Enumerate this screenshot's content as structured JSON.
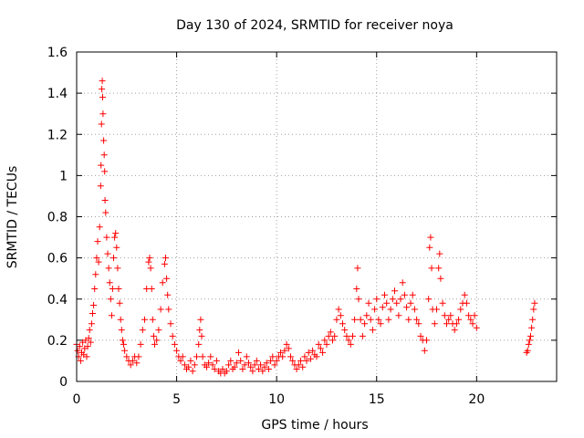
{
  "chart_data": {
    "type": "scatter",
    "title": "Day 130 of 2024, SRMTID for receiver noya",
    "xlabel": "GPS time / hours",
    "ylabel": "SRMTID / TECUs",
    "xlim": [
      0,
      24
    ],
    "ylim": [
      0,
      1.6
    ],
    "xticks": [
      0,
      5,
      10,
      15,
      20
    ],
    "xtick_labels": [
      "0",
      "5",
      "10",
      "15",
      "20"
    ],
    "yticks": [
      0,
      0.2,
      0.4,
      0.6,
      0.8,
      1,
      1.2,
      1.4,
      1.6
    ],
    "ytick_labels": [
      "0",
      "0.2",
      "0.4",
      "0.6",
      "0.8",
      "1",
      "1.2",
      "1.4",
      "1.6"
    ],
    "grid": true,
    "marker": "+",
    "color": "#ff0000",
    "series": [
      {
        "name": "SRMTID",
        "points": [
          [
            0.0,
            0.18
          ],
          [
            0.05,
            0.15
          ],
          [
            0.1,
            0.12
          ],
          [
            0.15,
            0.17
          ],
          [
            0.2,
            0.1
          ],
          [
            0.25,
            0.14
          ],
          [
            0.3,
            0.19
          ],
          [
            0.35,
            0.13
          ],
          [
            0.4,
            0.16
          ],
          [
            0.45,
            0.2
          ],
          [
            0.5,
            0.12
          ],
          [
            0.55,
            0.17
          ],
          [
            0.6,
            0.21
          ],
          [
            0.65,
            0.25
          ],
          [
            0.7,
            0.19
          ],
          [
            0.75,
            0.28
          ],
          [
            0.8,
            0.33
          ],
          [
            0.85,
            0.37
          ],
          [
            0.9,
            0.45
          ],
          [
            0.95,
            0.52
          ],
          [
            1.0,
            0.6
          ],
          [
            1.05,
            0.68
          ],
          [
            1.1,
            0.58
          ],
          [
            1.15,
            0.75
          ],
          [
            1.2,
            0.95
          ],
          [
            1.22,
            1.05
          ],
          [
            1.24,
            1.25
          ],
          [
            1.26,
            1.42
          ],
          [
            1.28,
            1.46
          ],
          [
            1.3,
            1.38
          ],
          [
            1.32,
            1.3
          ],
          [
            1.35,
            1.17
          ],
          [
            1.38,
            1.1
          ],
          [
            1.4,
            1.02
          ],
          [
            1.42,
            0.88
          ],
          [
            1.45,
            0.82
          ],
          [
            1.5,
            0.7
          ],
          [
            1.55,
            0.62
          ],
          [
            1.6,
            0.55
          ],
          [
            1.65,
            0.48
          ],
          [
            1.7,
            0.4
          ],
          [
            1.75,
            0.32
          ],
          [
            1.8,
            0.45
          ],
          [
            1.85,
            0.6
          ],
          [
            1.9,
            0.7
          ],
          [
            1.95,
            0.72
          ],
          [
            2.0,
            0.65
          ],
          [
            2.05,
            0.55
          ],
          [
            2.1,
            0.45
          ],
          [
            2.15,
            0.38
          ],
          [
            2.2,
            0.3
          ],
          [
            2.25,
            0.25
          ],
          [
            2.3,
            0.2
          ],
          [
            2.35,
            0.18
          ],
          [
            2.4,
            0.15
          ],
          [
            2.5,
            0.12
          ],
          [
            2.6,
            0.1
          ],
          [
            2.7,
            0.08
          ],
          [
            2.8,
            0.1
          ],
          [
            2.9,
            0.12
          ],
          [
            3.0,
            0.09
          ],
          [
            3.1,
            0.12
          ],
          [
            3.2,
            0.18
          ],
          [
            3.3,
            0.25
          ],
          [
            3.4,
            0.3
          ],
          [
            3.5,
            0.45
          ],
          [
            3.6,
            0.58
          ],
          [
            3.65,
            0.6
          ],
          [
            3.7,
            0.55
          ],
          [
            3.75,
            0.45
          ],
          [
            3.8,
            0.3
          ],
          [
            3.85,
            0.22
          ],
          [
            3.9,
            0.18
          ],
          [
            4.0,
            0.2
          ],
          [
            4.1,
            0.25
          ],
          [
            4.2,
            0.35
          ],
          [
            4.3,
            0.48
          ],
          [
            4.4,
            0.57
          ],
          [
            4.45,
            0.6
          ],
          [
            4.5,
            0.5
          ],
          [
            4.55,
            0.42
          ],
          [
            4.6,
            0.35
          ],
          [
            4.7,
            0.28
          ],
          [
            4.8,
            0.22
          ],
          [
            4.9,
            0.18
          ],
          [
            5.0,
            0.15
          ],
          [
            5.1,
            0.12
          ],
          [
            5.2,
            0.1
          ],
          [
            5.3,
            0.12
          ],
          [
            5.4,
            0.08
          ],
          [
            5.5,
            0.06
          ],
          [
            5.6,
            0.07
          ],
          [
            5.7,
            0.1
          ],
          [
            5.8,
            0.05
          ],
          [
            5.9,
            0.08
          ],
          [
            6.0,
            0.12
          ],
          [
            6.1,
            0.18
          ],
          [
            6.15,
            0.25
          ],
          [
            6.2,
            0.3
          ],
          [
            6.25,
            0.22
          ],
          [
            6.3,
            0.12
          ],
          [
            6.4,
            0.08
          ],
          [
            6.5,
            0.07
          ],
          [
            6.6,
            0.09
          ],
          [
            6.7,
            0.12
          ],
          [
            6.8,
            0.08
          ],
          [
            6.9,
            0.06
          ],
          [
            7.0,
            0.1
          ],
          [
            7.1,
            0.05
          ],
          [
            7.2,
            0.04
          ],
          [
            7.3,
            0.06
          ],
          [
            7.4,
            0.04
          ],
          [
            7.5,
            0.05
          ],
          [
            7.6,
            0.08
          ],
          [
            7.7,
            0.1
          ],
          [
            7.8,
            0.06
          ],
          [
            7.9,
            0.07
          ],
          [
            8.0,
            0.09
          ],
          [
            8.1,
            0.14
          ],
          [
            8.2,
            0.1
          ],
          [
            8.3,
            0.06
          ],
          [
            8.4,
            0.08
          ],
          [
            8.5,
            0.12
          ],
          [
            8.6,
            0.09
          ],
          [
            8.7,
            0.07
          ],
          [
            8.8,
            0.05
          ],
          [
            8.9,
            0.08
          ],
          [
            9.0,
            0.1
          ],
          [
            9.1,
            0.06
          ],
          [
            9.2,
            0.08
          ],
          [
            9.3,
            0.05
          ],
          [
            9.4,
            0.07
          ],
          [
            9.5,
            0.09
          ],
          [
            9.6,
            0.06
          ],
          [
            9.7,
            0.1
          ],
          [
            9.8,
            0.12
          ],
          [
            9.9,
            0.08
          ],
          [
            10.0,
            0.1
          ],
          [
            10.1,
            0.12
          ],
          [
            10.2,
            0.14
          ],
          [
            10.3,
            0.12
          ],
          [
            10.4,
            0.15
          ],
          [
            10.5,
            0.18
          ],
          [
            10.6,
            0.16
          ],
          [
            10.7,
            0.12
          ],
          [
            10.8,
            0.1
          ],
          [
            10.9,
            0.08
          ],
          [
            11.0,
            0.06
          ],
          [
            11.1,
            0.08
          ],
          [
            11.2,
            0.1
          ],
          [
            11.3,
            0.07
          ],
          [
            11.4,
            0.12
          ],
          [
            11.5,
            0.1
          ],
          [
            11.6,
            0.14
          ],
          [
            11.7,
            0.11
          ],
          [
            11.8,
            0.15
          ],
          [
            11.9,
            0.13
          ],
          [
            12.0,
            0.12
          ],
          [
            12.1,
            0.18
          ],
          [
            12.2,
            0.16
          ],
          [
            12.3,
            0.14
          ],
          [
            12.4,
            0.2
          ],
          [
            12.5,
            0.18
          ],
          [
            12.6,
            0.22
          ],
          [
            12.7,
            0.24
          ],
          [
            12.8,
            0.2
          ],
          [
            12.9,
            0.22
          ],
          [
            13.0,
            0.3
          ],
          [
            13.1,
            0.35
          ],
          [
            13.2,
            0.32
          ],
          [
            13.3,
            0.28
          ],
          [
            13.4,
            0.25
          ],
          [
            13.5,
            0.22
          ],
          [
            13.6,
            0.2
          ],
          [
            13.7,
            0.18
          ],
          [
            13.8,
            0.22
          ],
          [
            13.9,
            0.3
          ],
          [
            14.0,
            0.45
          ],
          [
            14.05,
            0.55
          ],
          [
            14.1,
            0.4
          ],
          [
            14.2,
            0.3
          ],
          [
            14.3,
            0.22
          ],
          [
            14.4,
            0.28
          ],
          [
            14.5,
            0.32
          ],
          [
            14.6,
            0.38
          ],
          [
            14.7,
            0.3
          ],
          [
            14.8,
            0.25
          ],
          [
            14.9,
            0.35
          ],
          [
            15.0,
            0.4
          ],
          [
            15.1,
            0.3
          ],
          [
            15.2,
            0.28
          ],
          [
            15.3,
            0.36
          ],
          [
            15.4,
            0.42
          ],
          [
            15.5,
            0.38
          ],
          [
            15.6,
            0.3
          ],
          [
            15.7,
            0.35
          ],
          [
            15.8,
            0.4
          ],
          [
            15.9,
            0.44
          ],
          [
            16.0,
            0.38
          ],
          [
            16.1,
            0.32
          ],
          [
            16.2,
            0.4
          ],
          [
            16.3,
            0.48
          ],
          [
            16.4,
            0.42
          ],
          [
            16.5,
            0.36
          ],
          [
            16.6,
            0.3
          ],
          [
            16.7,
            0.38
          ],
          [
            16.8,
            0.42
          ],
          [
            16.9,
            0.35
          ],
          [
            17.0,
            0.3
          ],
          [
            17.1,
            0.28
          ],
          [
            17.2,
            0.22
          ],
          [
            17.3,
            0.2
          ],
          [
            17.4,
            0.15
          ],
          [
            17.5,
            0.2
          ],
          [
            17.6,
            0.4
          ],
          [
            17.65,
            0.65
          ],
          [
            17.7,
            0.7
          ],
          [
            17.75,
            0.55
          ],
          [
            17.8,
            0.35
          ],
          [
            17.9,
            0.28
          ],
          [
            18.0,
            0.35
          ],
          [
            18.1,
            0.55
          ],
          [
            18.15,
            0.62
          ],
          [
            18.2,
            0.5
          ],
          [
            18.3,
            0.38
          ],
          [
            18.4,
            0.32
          ],
          [
            18.5,
            0.28
          ],
          [
            18.6,
            0.3
          ],
          [
            18.7,
            0.32
          ],
          [
            18.8,
            0.28
          ],
          [
            18.9,
            0.25
          ],
          [
            19.0,
            0.28
          ],
          [
            19.1,
            0.3
          ],
          [
            19.2,
            0.35
          ],
          [
            19.3,
            0.38
          ],
          [
            19.4,
            0.42
          ],
          [
            19.5,
            0.38
          ],
          [
            19.6,
            0.32
          ],
          [
            19.7,
            0.3
          ],
          [
            19.8,
            0.28
          ],
          [
            19.9,
            0.32
          ],
          [
            20.0,
            0.26
          ],
          [
            22.5,
            0.14
          ],
          [
            22.55,
            0.15
          ],
          [
            22.6,
            0.18
          ],
          [
            22.65,
            0.2
          ],
          [
            22.7,
            0.22
          ],
          [
            22.75,
            0.26
          ],
          [
            22.8,
            0.3
          ],
          [
            22.85,
            0.35
          ],
          [
            22.9,
            0.38
          ]
        ]
      }
    ]
  }
}
